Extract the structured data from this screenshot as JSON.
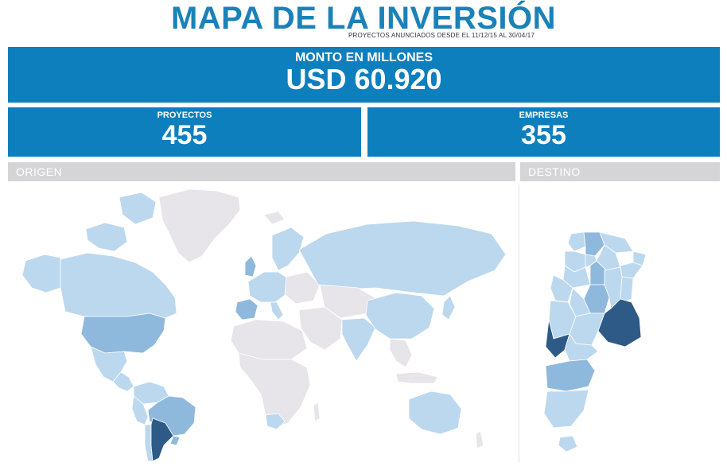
{
  "header": {
    "title": "MAPA DE LA INVERSIÓN",
    "subtitle": "PROYECTOS ANUNCIADOS DESDE EL 11/12/15 AL 30/04/17"
  },
  "monto": {
    "label": "MONTO EN MILLONES",
    "value": "USD 60.920"
  },
  "proyectos": {
    "label": "PROYECTOS",
    "value": "455"
  },
  "empresas": {
    "label": "EMPRESAS",
    "value": "355"
  },
  "sections": {
    "origen": "ORIGEN",
    "destino": "DESTINO"
  },
  "colors": {
    "accent": "#0d7fbd",
    "title": "#1a82b8",
    "map_none": "#e7e4ea",
    "map_low": "#bcd8ee",
    "map_mid": "#8fb8dd",
    "map_high": "#2d5a87"
  }
}
